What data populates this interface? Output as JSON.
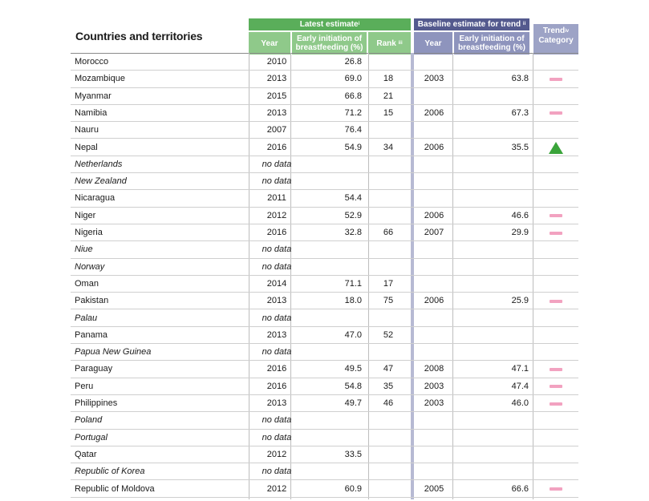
{
  "header": {
    "title": "Countries and territories",
    "latest_band": "Latest estimate",
    "latest_sup": "i",
    "baseline_band": "Baseline estimate for trend",
    "baseline_sup": "ii",
    "year_label": "Year",
    "eib_label": "Early initiation of breastfeeding (%)",
    "rank_label": "Rank",
    "rank_sup": "iii",
    "trend_label": "Trend",
    "trend_sup": "iv",
    "category_label": "Category"
  },
  "icons": {
    "stagnant": "pink-dash-icon",
    "increase": "green-triangle-up-icon"
  },
  "colors": {
    "green": "#5aae5a",
    "purple": "#545a8e",
    "pink": "#f2a2c0",
    "triangle": "#3aa43a"
  },
  "rows": [
    {
      "country": "Morocco",
      "italic": false,
      "year": "2010",
      "estimate": "26.8",
      "rank": "",
      "base_year": "",
      "base_estimate": "",
      "trend": ""
    },
    {
      "country": "Mozambique",
      "italic": false,
      "year": "2013",
      "estimate": "69.0",
      "rank": "18",
      "base_year": "2003",
      "base_estimate": "63.8",
      "trend": "dash"
    },
    {
      "country": "Myanmar",
      "italic": false,
      "year": "2015",
      "estimate": "66.8",
      "rank": "21",
      "base_year": "",
      "base_estimate": "",
      "trend": ""
    },
    {
      "country": "Namibia",
      "italic": false,
      "year": "2013",
      "estimate": "71.2",
      "rank": "15",
      "base_year": "2006",
      "base_estimate": "67.3",
      "trend": "dash"
    },
    {
      "country": "Nauru",
      "italic": false,
      "year": "2007",
      "estimate": "76.4",
      "rank": "",
      "base_year": "",
      "base_estimate": "",
      "trend": ""
    },
    {
      "country": "Nepal",
      "italic": false,
      "year": "2016",
      "estimate": "54.9",
      "rank": "34",
      "base_year": "2006",
      "base_estimate": "35.5",
      "trend": "up"
    },
    {
      "country": "Netherlands",
      "italic": true,
      "year": "no data",
      "estimate": "",
      "rank": "",
      "base_year": "",
      "base_estimate": "",
      "trend": ""
    },
    {
      "country": "New Zealand",
      "italic": true,
      "year": "no data",
      "estimate": "",
      "rank": "",
      "base_year": "",
      "base_estimate": "",
      "trend": ""
    },
    {
      "country": "Nicaragua",
      "italic": false,
      "year": "2011",
      "estimate": "54.4",
      "rank": "",
      "base_year": "",
      "base_estimate": "",
      "trend": ""
    },
    {
      "country": "Niger",
      "italic": false,
      "year": "2012",
      "estimate": "52.9",
      "rank": "",
      "base_year": "2006",
      "base_estimate": "46.6",
      "trend": "dash"
    },
    {
      "country": "Nigeria",
      "italic": false,
      "year": "2016",
      "estimate": "32.8",
      "rank": "66",
      "base_year": "2007",
      "base_estimate": "29.9",
      "trend": "dash"
    },
    {
      "country": "Niue",
      "italic": true,
      "year": "no data",
      "estimate": "",
      "rank": "",
      "base_year": "",
      "base_estimate": "",
      "trend": ""
    },
    {
      "country": "Norway",
      "italic": true,
      "year": "no data",
      "estimate": "",
      "rank": "",
      "base_year": "",
      "base_estimate": "",
      "trend": ""
    },
    {
      "country": "Oman",
      "italic": false,
      "year": "2014",
      "estimate": "71.1",
      "rank": "17",
      "base_year": "",
      "base_estimate": "",
      "trend": ""
    },
    {
      "country": "Pakistan",
      "italic": false,
      "year": "2013",
      "estimate": "18.0",
      "rank": "75",
      "base_year": "2006",
      "base_estimate": "25.9",
      "trend": "dash"
    },
    {
      "country": "Palau",
      "italic": true,
      "year": "no data",
      "estimate": "",
      "rank": "",
      "base_year": "",
      "base_estimate": "",
      "trend": ""
    },
    {
      "country": "Panama",
      "italic": false,
      "year": "2013",
      "estimate": "47.0",
      "rank": "52",
      "base_year": "",
      "base_estimate": "",
      "trend": ""
    },
    {
      "country": "Papua New Guinea",
      "italic": true,
      "year": "no data",
      "estimate": "",
      "rank": "",
      "base_year": "",
      "base_estimate": "",
      "trend": ""
    },
    {
      "country": "Paraguay",
      "italic": false,
      "year": "2016",
      "estimate": "49.5",
      "rank": "47",
      "base_year": "2008",
      "base_estimate": "47.1",
      "trend": "dash"
    },
    {
      "country": "Peru",
      "italic": false,
      "year": "2016",
      "estimate": "54.8",
      "rank": "35",
      "base_year": "2003",
      "base_estimate": "47.4",
      "trend": "dash"
    },
    {
      "country": "Philippines",
      "italic": false,
      "year": "2013",
      "estimate": "49.7",
      "rank": "46",
      "base_year": "2003",
      "base_estimate": "46.0",
      "trend": "dash"
    },
    {
      "country": "Poland",
      "italic": true,
      "year": "no data",
      "estimate": "",
      "rank": "",
      "base_year": "",
      "base_estimate": "",
      "trend": ""
    },
    {
      "country": "Portugal",
      "italic": true,
      "year": "no data",
      "estimate": "",
      "rank": "",
      "base_year": "",
      "base_estimate": "",
      "trend": ""
    },
    {
      "country": "Qatar",
      "italic": false,
      "year": "2012",
      "estimate": "33.5",
      "rank": "",
      "base_year": "",
      "base_estimate": "",
      "trend": ""
    },
    {
      "country": "Republic of Korea",
      "italic": true,
      "year": "no data",
      "estimate": "",
      "rank": "",
      "base_year": "",
      "base_estimate": "",
      "trend": ""
    },
    {
      "country": "Republic of Moldova",
      "italic": false,
      "year": "2012",
      "estimate": "60.9",
      "rank": "",
      "base_year": "2005",
      "base_estimate": "66.6",
      "trend": "dash"
    }
  ]
}
